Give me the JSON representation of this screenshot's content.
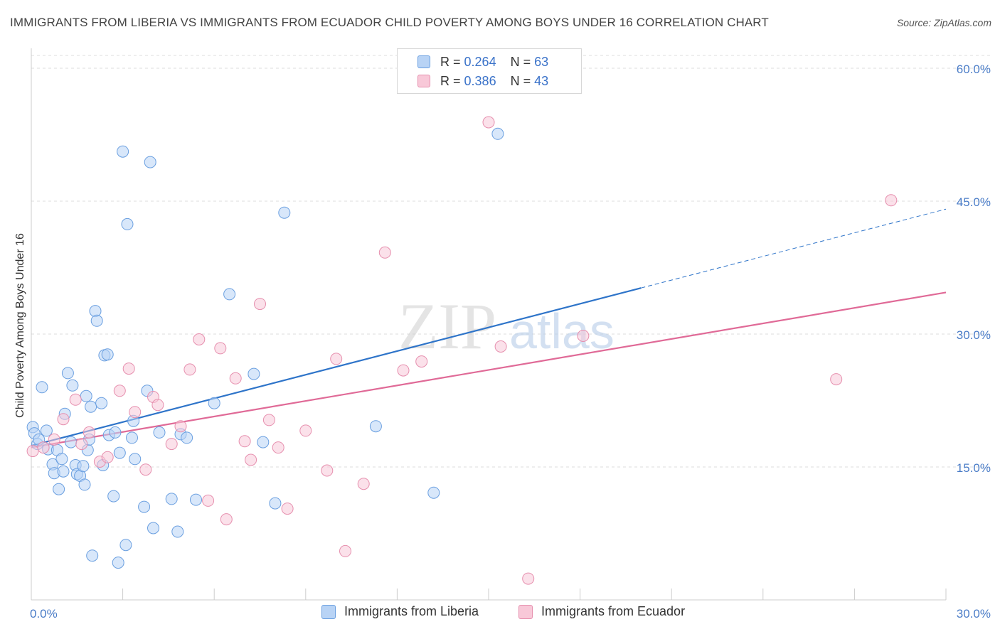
{
  "title": "IMMIGRANTS FROM LIBERIA VS IMMIGRANTS FROM ECUADOR CHILD POVERTY AMONG BOYS UNDER 16 CORRELATION CHART",
  "source": "Source: ZipAtlas.com",
  "watermark": {
    "zip": "ZIP",
    "atlas": "atlas"
  },
  "colors": {
    "liberia_fill": "#b8d3f5",
    "liberia_stroke": "#6a9fe0",
    "liberia_line": "#2e74c9",
    "ecuador_fill": "#f8c8d8",
    "ecuador_stroke": "#e68fae",
    "ecuador_line": "#e06a97",
    "tick_text": "#4a7cc7",
    "grid": "#dddddd"
  },
  "legend_top": [
    {
      "r_label": "R =",
      "r_value": "0.264",
      "n_label": "N =",
      "n_value": "63"
    },
    {
      "r_label": "R =",
      "r_value": "0.386",
      "n_label": "N =",
      "n_value": "43"
    }
  ],
  "chart_data": {
    "type": "scatter",
    "title": "IMMIGRANTS FROM LIBERIA VS IMMIGRANTS FROM ECUADOR CHILD POVERTY AMONG BOYS UNDER 16 CORRELATION CHART",
    "xlabel": "",
    "ylabel": "Child Poverty Among Boys Under 16",
    "xlim": [
      0,
      30
    ],
    "ylim": [
      0,
      60
    ],
    "x_tick_labels": [
      "0.0%",
      "30.0%"
    ],
    "y_ticks": [
      15,
      30,
      45,
      60
    ],
    "y_tick_labels": [
      "15.0%",
      "30.0%",
      "45.0%",
      "60.0%"
    ],
    "grid": true,
    "legend_position": "top-center",
    "series": [
      {
        "name": "Immigrants from Liberia",
        "R": 0.264,
        "N": 63,
        "trend": {
          "x": [
            0,
            20
          ],
          "y": [
            17.4,
            35.2
          ],
          "dashed_to": [
            30,
            44.1
          ]
        },
        "points": [
          [
            0.05,
            19.5
          ],
          [
            0.1,
            18.8
          ],
          [
            0.2,
            17.6
          ],
          [
            0.35,
            24.0
          ],
          [
            0.5,
            19.1
          ],
          [
            0.55,
            17.0
          ],
          [
            0.7,
            15.3
          ],
          [
            0.75,
            14.3
          ],
          [
            0.85,
            16.9
          ],
          [
            0.9,
            12.5
          ],
          [
            1.0,
            15.9
          ],
          [
            1.05,
            14.5
          ],
          [
            1.1,
            21.0
          ],
          [
            1.2,
            25.6
          ],
          [
            1.3,
            17.8
          ],
          [
            1.35,
            24.2
          ],
          [
            1.45,
            15.2
          ],
          [
            1.5,
            14.2
          ],
          [
            1.6,
            14.0
          ],
          [
            1.7,
            15.1
          ],
          [
            1.75,
            13.0
          ],
          [
            1.8,
            23.0
          ],
          [
            1.85,
            16.9
          ],
          [
            1.95,
            21.8
          ],
          [
            2.0,
            5.0
          ],
          [
            2.1,
            32.6
          ],
          [
            2.15,
            31.5
          ],
          [
            2.3,
            22.2
          ],
          [
            2.35,
            15.2
          ],
          [
            2.4,
            27.6
          ],
          [
            2.5,
            27.7
          ],
          [
            2.55,
            18.6
          ],
          [
            2.7,
            11.7
          ],
          [
            2.75,
            18.9
          ],
          [
            2.85,
            4.2
          ],
          [
            2.9,
            16.6
          ],
          [
            3.0,
            50.6
          ],
          [
            3.1,
            6.2
          ],
          [
            3.15,
            42.4
          ],
          [
            3.3,
            18.3
          ],
          [
            3.35,
            20.2
          ],
          [
            3.4,
            15.9
          ],
          [
            3.7,
            10.5
          ],
          [
            3.8,
            23.6
          ],
          [
            3.9,
            49.4
          ],
          [
            4.0,
            8.1
          ],
          [
            4.2,
            18.9
          ],
          [
            4.6,
            11.4
          ],
          [
            4.8,
            7.7
          ],
          [
            4.9,
            18.7
          ],
          [
            5.1,
            18.3
          ],
          [
            5.4,
            11.3
          ],
          [
            6.0,
            22.2
          ],
          [
            6.5,
            34.5
          ],
          [
            7.3,
            25.5
          ],
          [
            7.6,
            17.8
          ],
          [
            8.0,
            10.9
          ],
          [
            8.3,
            43.7
          ],
          [
            11.3,
            19.6
          ],
          [
            13.2,
            12.1
          ],
          [
            15.3,
            52.6
          ],
          [
            0.25,
            18.1
          ],
          [
            1.9,
            18.1
          ]
        ]
      },
      {
        "name": "Immigrants from Ecuador",
        "R": 0.386,
        "N": 43,
        "trend": {
          "x": [
            0,
            30
          ],
          "y": [
            17.2,
            34.7
          ]
        },
        "points": [
          [
            0.05,
            16.8
          ],
          [
            0.4,
            17.2
          ],
          [
            0.75,
            18.1
          ],
          [
            1.05,
            20.4
          ],
          [
            1.45,
            22.6
          ],
          [
            1.65,
            17.6
          ],
          [
            1.9,
            18.9
          ],
          [
            2.25,
            15.6
          ],
          [
            2.5,
            16.1
          ],
          [
            2.9,
            23.6
          ],
          [
            3.2,
            26.1
          ],
          [
            3.4,
            21.2
          ],
          [
            3.75,
            14.7
          ],
          [
            4.0,
            22.9
          ],
          [
            4.15,
            22.0
          ],
          [
            4.6,
            17.6
          ],
          [
            4.9,
            19.6
          ],
          [
            5.2,
            26.0
          ],
          [
            5.5,
            29.4
          ],
          [
            5.8,
            11.2
          ],
          [
            6.2,
            28.4
          ],
          [
            6.4,
            9.1
          ],
          [
            6.7,
            25.0
          ],
          [
            7.0,
            17.9
          ],
          [
            7.2,
            15.8
          ],
          [
            7.5,
            33.4
          ],
          [
            7.8,
            20.3
          ],
          [
            8.1,
            17.2
          ],
          [
            8.4,
            10.3
          ],
          [
            9.0,
            19.1
          ],
          [
            9.7,
            14.6
          ],
          [
            10.0,
            27.2
          ],
          [
            10.3,
            5.5
          ],
          [
            10.9,
            13.1
          ],
          [
            11.6,
            39.2
          ],
          [
            12.2,
            25.9
          ],
          [
            12.8,
            26.9
          ],
          [
            15.0,
            53.9
          ],
          [
            15.4,
            28.6
          ],
          [
            16.3,
            2.4
          ],
          [
            18.1,
            29.8
          ],
          [
            26.4,
            24.9
          ],
          [
            28.2,
            45.1
          ]
        ]
      }
    ]
  }
}
